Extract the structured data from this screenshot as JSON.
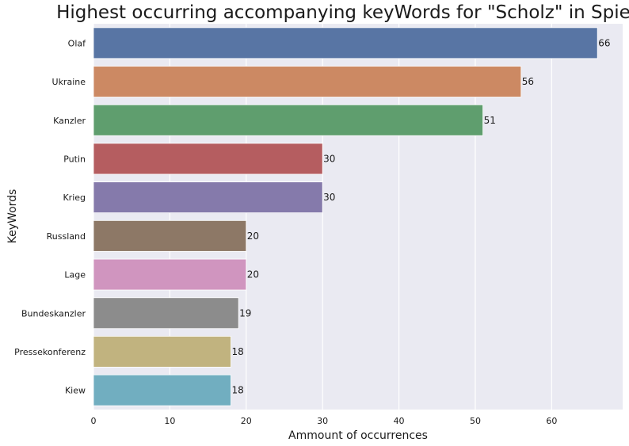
{
  "chart_data": {
    "type": "bar",
    "orientation": "horizontal",
    "title": "Highest occurring accompanying keyWords for \"Scholz\" in Spiegel",
    "xlabel": "Ammount of occurrences",
    "ylabel": "KeyWords",
    "categories": [
      "Olaf",
      "Ukraine",
      "Kanzler",
      "Putin",
      "Krieg",
      "Russland",
      "Lage",
      "Bundeskanzler",
      "Pressekonferenz",
      "Kiew"
    ],
    "values": [
      66,
      56,
      51,
      30,
      30,
      20,
      20,
      19,
      18,
      18
    ],
    "data_labels": [
      "66",
      "56",
      "51",
      "30",
      "30",
      "20",
      "20",
      "19",
      "18",
      "18"
    ],
    "xlim": [
      0,
      69.3
    ],
    "xticks": [
      0,
      10,
      20,
      30,
      40,
      50,
      60
    ],
    "grid": true,
    "legend": "none",
    "colors": [
      "#5875a4",
      "#cc8963",
      "#5f9e6e",
      "#b55d60",
      "#857aab",
      "#8d7866",
      "#d095bf",
      "#8c8c8c",
      "#c1b37f",
      "#71aec0"
    ],
    "background": "#eaeaf2"
  }
}
